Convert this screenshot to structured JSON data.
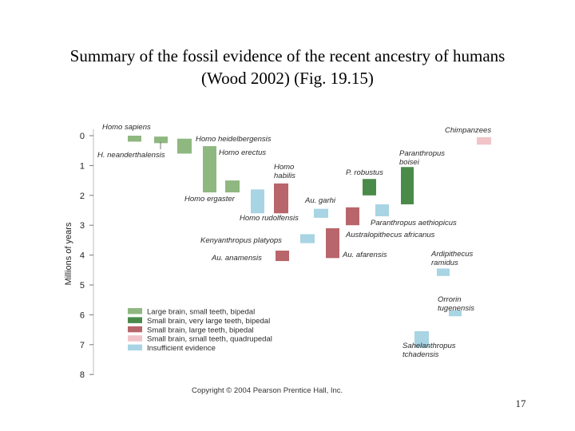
{
  "title": {
    "line1": "Summary of the fossil evidence of the recent ancestry of humans",
    "line2": "(Wood 2002) (Fig. 19.15)"
  },
  "copyright": "Copyright © 2004 Pearson Prentice Hall, Inc.",
  "page_number": "17",
  "chart_data": {
    "type": "bar",
    "ylabel": "Millions of years",
    "ylim": [
      0,
      8
    ],
    "y_inverted": true,
    "y_ticks": [
      "0",
      "1",
      "2",
      "3",
      "4",
      "5",
      "6",
      "7",
      "8"
    ],
    "grid": false,
    "legend_position": "bottom-left",
    "legend": [
      {
        "category": "large-brain",
        "label": "Large brain, small teeth, bipedal",
        "color": "#8fb880"
      },
      {
        "category": "very-large-teeth",
        "label": "Small brain, very large teeth, bipedal",
        "color": "#4a8b4a"
      },
      {
        "category": "large-teeth",
        "label": "Small brain, large teeth, bipedal",
        "color": "#b8666b"
      },
      {
        "category": "quadrupedal",
        "label": "Small brain, small teeth, quadrupedal",
        "color": "#f0c4c8"
      },
      {
        "category": "insufficient",
        "label": "Insufficient evidence",
        "color": "#a8d4e4"
      }
    ],
    "taxa": [
      {
        "label": "Homo sapiens",
        "label_lines": [
          "Homo sapiens"
        ],
        "category": "large-brain",
        "start": 0.2,
        "end": 0
      },
      {
        "label": "H. neanderthalensis",
        "label_lines": [
          "H. neanderthalensis"
        ],
        "category": "large-brain",
        "start": 0.25,
        "end": 0.03
      },
      {
        "label": "Homo heidelbergensis",
        "label_lines": [
          "Homo heidelbergensis"
        ],
        "category": "large-brain",
        "start": 0.6,
        "end": 0.1
      },
      {
        "label": "Homo erectus",
        "label_lines": [
          "Homo erectus"
        ],
        "category": "large-brain",
        "start": 1.9,
        "end": 0.35
      },
      {
        "label": "Homo ergaster",
        "label_lines": [
          "Homo ergaster"
        ],
        "category": "large-brain",
        "start": 1.9,
        "end": 1.5
      },
      {
        "label": "Homo rudolfensis",
        "label_lines": [
          "Homo rudolfensis"
        ],
        "category": "insufficient",
        "start": 2.6,
        "end": 1.8
      },
      {
        "label": "Homo habilis",
        "label_lines": [
          "Homo",
          "habilis"
        ],
        "category": "large-teeth",
        "start": 2.6,
        "end": 1.6
      },
      {
        "label": "Au. garhi",
        "label_lines": [
          "Au. garhi"
        ],
        "category": "insufficient",
        "start": 2.75,
        "end": 2.45
      },
      {
        "label": "Kenyanthropus platyops",
        "label_lines": [
          "Kenyanthropus platyops"
        ],
        "category": "insufficient",
        "start": 3.6,
        "end": 3.3
      },
      {
        "label": "Au. anamensis",
        "label_lines": [
          "Au. anamensis"
        ],
        "category": "large-teeth",
        "start": 4.2,
        "end": 3.85
      },
      {
        "label": "Au. afarensis",
        "label_lines": [
          "Au. afarensis"
        ],
        "category": "large-teeth",
        "start": 4.1,
        "end": 3.1
      },
      {
        "label": "Australopithecus africanus",
        "label_lines": [
          "Australopithecus africanus"
        ],
        "category": "large-teeth",
        "start": 3.0,
        "end": 2.4
      },
      {
        "label": "P. robustus",
        "label_lines": [
          "P. robustus"
        ],
        "category": "very-large-teeth",
        "start": 2.0,
        "end": 1.45
      },
      {
        "label": "Paranthropus aethiopicus",
        "label_lines": [
          "Paranthropus aethiopicus"
        ],
        "category": "insufficient",
        "start": 2.7,
        "end": 2.3
      },
      {
        "label": "Paranthropus boisei",
        "label_lines": [
          "Paranthropus",
          "boisei"
        ],
        "category": "very-large-teeth",
        "start": 2.3,
        "end": 1.05
      },
      {
        "label": "Ardipithecus ramidus",
        "label_lines": [
          "Ardipithecus",
          "ramidus"
        ],
        "category": "insufficient",
        "start": 4.7,
        "end": 4.45
      },
      {
        "label": "Orrorin tugenensis",
        "label_lines": [
          "Orrorin",
          "tugenensis"
        ],
        "category": "insufficient",
        "start": 6.05,
        "end": 5.85
      },
      {
        "label": "Sahelanthropus tchadensis",
        "label_lines": [
          "Sahelanthropus",
          "tchadensis"
        ],
        "category": "insufficient",
        "start": 7.1,
        "end": 6.55
      },
      {
        "label": "Chimpanzees",
        "label_lines": [
          "Chimpanzees"
        ],
        "category": "quadrupedal",
        "start": 0.3,
        "end": 0.05
      }
    ]
  }
}
